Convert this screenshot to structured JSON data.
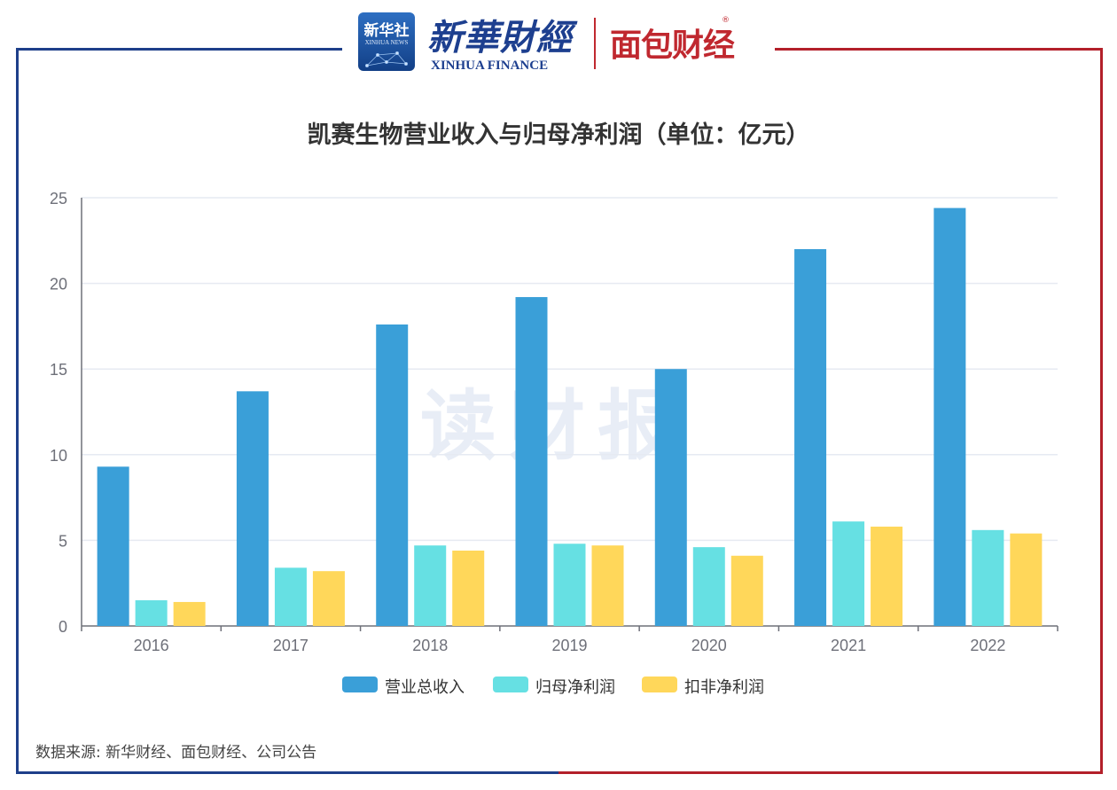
{
  "header": {
    "xinhua_logo_cn": "新华社",
    "xinhua_logo_en": "XINHUA NEWS",
    "xinhua_finance_cn": "新華財經",
    "xinhua_finance_en": "XINHUA FINANCE",
    "mianbao_brand": "面包财经",
    "registered_mark": "®"
  },
  "watermark": "读财报",
  "source": "数据来源: 新华财经、面包财经、公司公告",
  "colors": {
    "frame_left": "#1e3f8a",
    "frame_right": "#b3202a",
    "series": [
      "#3a9fd8",
      "#66e0e3",
      "#ffd75a"
    ],
    "grid": "#e6eaf2",
    "axis": "#6e7079"
  },
  "chart_data": {
    "type": "bar",
    "title": "凯赛生物营业收入与归母净利润（单位：亿元）",
    "categories": [
      "2016",
      "2017",
      "2018",
      "2019",
      "2020",
      "2021",
      "2022"
    ],
    "series": [
      {
        "name": "营业总收入",
        "values": [
          9.3,
          13.7,
          17.6,
          19.2,
          15.0,
          22.0,
          24.4
        ]
      },
      {
        "name": "归母净利润",
        "values": [
          1.5,
          3.4,
          4.7,
          4.8,
          4.6,
          6.1,
          5.6
        ]
      },
      {
        "name": "扣非净利润",
        "values": [
          1.4,
          3.2,
          4.4,
          4.7,
          4.1,
          5.8,
          5.4
        ]
      }
    ],
    "ylim": [
      0,
      25
    ],
    "yticks": [
      0,
      5,
      10,
      15,
      20,
      25
    ],
    "grid": true,
    "legend_position": "bottom-center"
  }
}
